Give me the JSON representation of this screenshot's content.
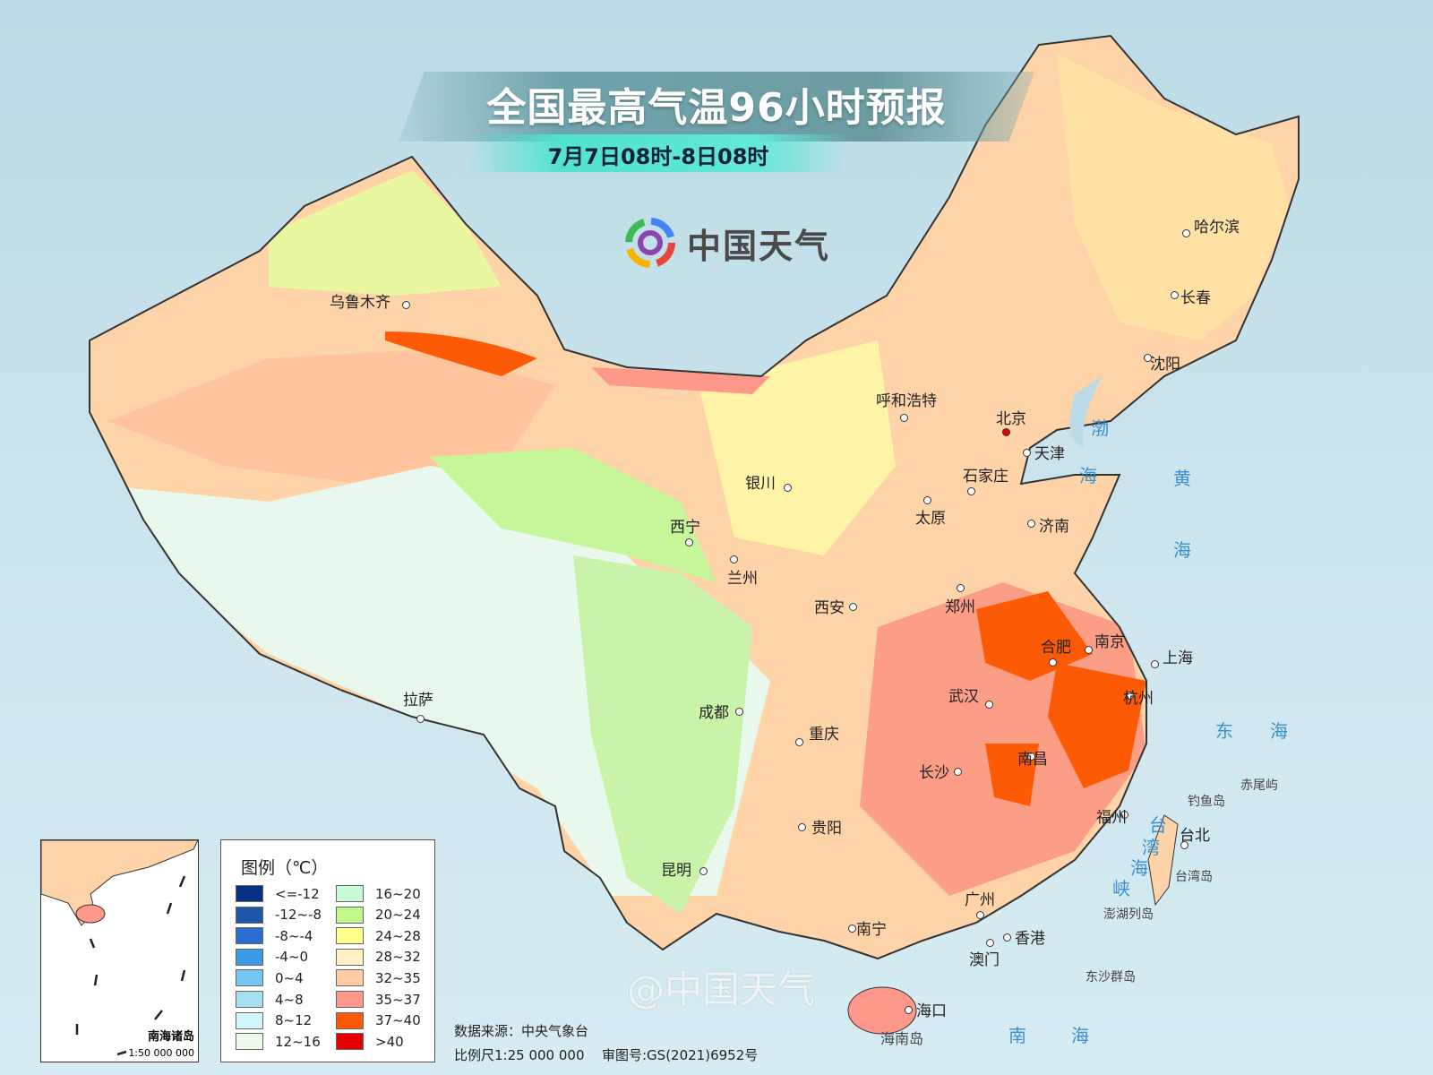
{
  "header": {
    "title": "全国最高气温96小时预报",
    "subtitle": "7月7日08时-8日08时",
    "logo_text": "中国天气",
    "logo_icon": "china-weather-swirl-icon"
  },
  "cities": [
    "乌鲁木齐",
    "哈尔滨",
    "长春",
    "沈阳",
    "呼和浩特",
    "北京",
    "天津",
    "石家庄",
    "太原",
    "济南",
    "银川",
    "西宁",
    "兰州",
    "西安",
    "郑州",
    "合肥",
    "南京",
    "上海",
    "武汉",
    "杭州",
    "成都",
    "重庆",
    "长沙",
    "南昌",
    "拉萨",
    "贵阳",
    "福州",
    "台北",
    "昆明",
    "广州",
    "南宁",
    "香港",
    "澳门",
    "海口"
  ],
  "capital": "北京",
  "seas": [
    "渤",
    "海",
    "黄",
    "海",
    "东",
    "海",
    "南",
    "海",
    "台",
    "湾",
    "海",
    "峡"
  ],
  "islands": [
    "钓鱼岛",
    "赤尾屿",
    "台湾岛",
    "澎湖列岛",
    "东沙群岛",
    "海南岛"
  ],
  "legend": {
    "title": "图例（℃）",
    "items": [
      {
        "label": "<=-12",
        "color": "#062f86"
      },
      {
        "label": "-12~-8",
        "color": "#1e56a8"
      },
      {
        "label": "-8~-4",
        "color": "#2a6fd0"
      },
      {
        "label": "-4~0",
        "color": "#3c9be8"
      },
      {
        "label": "0~4",
        "color": "#74c7f5"
      },
      {
        "label": "4~8",
        "color": "#a6def2"
      },
      {
        "label": "8~12",
        "color": "#d0f6fb"
      },
      {
        "label": "12~16",
        "color": "#eefbea"
      },
      {
        "label": "16~20",
        "color": "#c8fbd6"
      },
      {
        "label": "20~24",
        "color": "#c0f98a"
      },
      {
        "label": "24~28",
        "color": "#ffff8c"
      },
      {
        "label": "28~32",
        "color": "#fff0c6"
      },
      {
        "label": "32~35",
        "color": "#ffcca4"
      },
      {
        "label": "35~37",
        "color": "#fd988a"
      },
      {
        "label": "37~40",
        "color": "#fd5a06"
      },
      {
        "label": ">40",
        "color": "#e60000"
      }
    ]
  },
  "inset": {
    "label": "南海诸岛",
    "scale": "1:50 000 000"
  },
  "footer": {
    "source": "数据来源：中央气象台",
    "scale": "比例尺1:25 000 000",
    "approval": "审图号:GS(2021)6952号"
  },
  "watermark": "@中国天气"
}
